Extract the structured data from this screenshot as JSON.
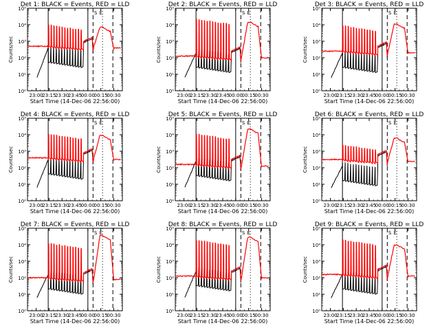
{
  "figure": {
    "colors": {
      "events": "#000000",
      "lld": "#ff0000",
      "background": "#ffffff"
    }
  },
  "chart_data": [
    {
      "type": "line",
      "title": "Det 1: BLACK = Events, RED = LLD",
      "xlabel": "Start Time (14-Dec-06 22:56:00)",
      "ylabel": "Counts/sec",
      "x_ticks": [
        "23:00",
        "23:15",
        "23:30",
        "23:45",
        "00:00",
        "00:15",
        "00:30"
      ],
      "y_ticks": [
        "10^0",
        "10^1",
        "10^2",
        "10^3",
        "10^4",
        "10^5"
      ],
      "xlim": [
        -10,
        100
      ],
      "ylim": [
        0,
        5
      ],
      "log_y": true,
      "markers": [
        "S",
        "E"
      ],
      "series": [
        {
          "name": "BLACK = Events"
        },
        {
          "name": "RED = LLD"
        }
      ]
    },
    {
      "type": "line",
      "title": "Det 2: BLACK = Events, RED = LLD",
      "xlabel": "Start Time (14-Dec-06 22:56:00)",
      "ylabel": "Counts/sec",
      "x_ticks": [
        "23:00",
        "23:15",
        "23:30",
        "23:45",
        "00:00",
        "00:15",
        "00:30"
      ],
      "y_ticks": [
        "10^0",
        "10^1",
        "10^2",
        "10^3",
        "10^4",
        "10^5"
      ],
      "xlim": [
        -10,
        100
      ],
      "ylim": [
        0,
        5
      ],
      "log_y": true,
      "markers": [
        "S",
        "E"
      ],
      "series": [
        {
          "name": "BLACK = Events"
        },
        {
          "name": "RED = LLD"
        }
      ]
    },
    {
      "type": "line",
      "title": "Det 3: BLACK = Events, RED = LLD",
      "xlabel": "Start Time (14-Dec-06 22:56:00)",
      "ylabel": "Counts/sec",
      "x_ticks": [
        "23:00",
        "23:15",
        "23:30",
        "23:45",
        "00:00",
        "00:15",
        "00:30"
      ],
      "y_ticks": [
        "10^0",
        "10^1",
        "10^2",
        "10^3",
        "10^4",
        "10^5"
      ],
      "xlim": [
        -10,
        100
      ],
      "ylim": [
        0,
        5
      ],
      "log_y": true,
      "markers": [
        "S",
        "E"
      ],
      "series": [
        {
          "name": "BLACK = Events"
        },
        {
          "name": "RED = LLD"
        }
      ]
    },
    {
      "type": "line",
      "title": "Det 4: BLACK = Events, RED = LLD",
      "xlabel": "Start Time (14-Dec-06 22:56:00)",
      "ylabel": "Counts/sec",
      "x_ticks": [
        "23:00",
        "23:15",
        "23:30",
        "23:45",
        "00:00",
        "00:15",
        "00:30"
      ],
      "y_ticks": [
        "10^0",
        "10^1",
        "10^2",
        "10^3",
        "10^4",
        "10^5"
      ],
      "xlim": [
        -10,
        100
      ],
      "ylim": [
        0,
        5
      ],
      "log_y": true,
      "markers": [
        "S",
        "E"
      ],
      "series": [
        {
          "name": "BLACK = Events"
        },
        {
          "name": "RED = LLD"
        }
      ]
    },
    {
      "type": "line",
      "title": "Det 5: BLACK = Events, RED = LLD",
      "xlabel": "Start Time (14-Dec-06 22:56:00)",
      "ylabel": "Counts/sec",
      "x_ticks": [
        "23:00",
        "23:15",
        "23:30",
        "23:45",
        "00:00",
        "00:15",
        "00:30"
      ],
      "y_ticks": [
        "10^0",
        "10^1",
        "10^2",
        "10^3",
        "10^4",
        "10^5"
      ],
      "xlim": [
        -10,
        100
      ],
      "ylim": [
        0,
        5
      ],
      "log_y": true,
      "markers": [
        "S",
        "E"
      ],
      "series": [
        {
          "name": "BLACK = Events"
        },
        {
          "name": "RED = LLD"
        }
      ]
    },
    {
      "type": "line",
      "title": "Det 6: BLACK = Events, RED = LLD",
      "xlabel": "Start Time (14-Dec-06 22:56:00)",
      "ylabel": "Counts/sec",
      "x_ticks": [
        "23:00",
        "23:15",
        "23:30",
        "23:45",
        "00:00",
        "00:15",
        "00:30"
      ],
      "y_ticks": [
        "10^0",
        "10^1",
        "10^2",
        "10^3",
        "10^4",
        "10^5"
      ],
      "xlim": [
        -10,
        100
      ],
      "ylim": [
        0,
        5
      ],
      "log_y": true,
      "markers": [
        "S",
        "E"
      ],
      "series": [
        {
          "name": "BLACK = Events"
        },
        {
          "name": "RED = LLD"
        }
      ]
    },
    {
      "type": "line",
      "title": "Det 7: BLACK = Events, RED = LLD",
      "xlabel": "Start Time (14-Dec-06 22:56:00)",
      "ylabel": "Counts/sec",
      "x_ticks": [
        "23:00",
        "23:15",
        "23:30",
        "23:45",
        "00:00",
        "00:15",
        "00:30"
      ],
      "y_ticks": [
        "10^0",
        "10^1",
        "10^2",
        "10^3",
        "10^4",
        "10^5"
      ],
      "xlim": [
        -10,
        100
      ],
      "ylim": [
        0,
        5
      ],
      "log_y": true,
      "markers": [
        "S",
        "E"
      ],
      "series": [
        {
          "name": "BLACK = Events"
        },
        {
          "name": "RED = LLD"
        }
      ]
    },
    {
      "type": "line",
      "title": "Det 8: BLACK = Events, RED = LLD",
      "xlabel": "Start Time (14-Dec-06 22:56:00)",
      "ylabel": "Counts/sec",
      "x_ticks": [
        "23:00",
        "23:15",
        "23:30",
        "23:45",
        "00:00",
        "00:15",
        "00:30"
      ],
      "y_ticks": [
        "10^0",
        "10^1",
        "10^2",
        "10^3",
        "10^4",
        "10^5"
      ],
      "xlim": [
        -10,
        100
      ],
      "ylim": [
        0,
        5
      ],
      "log_y": true,
      "markers": [
        "S",
        "E"
      ],
      "series": [
        {
          "name": "BLACK = Events"
        },
        {
          "name": "RED = LLD"
        }
      ]
    },
    {
      "type": "line",
      "title": "Det 9: BLACK = Events, RED = LLD",
      "xlabel": "Start Time (14-Dec-06 22:56:00)",
      "ylabel": "Counts/sec",
      "x_ticks": [
        "23:00",
        "23:15",
        "23:30",
        "23:45",
        "00:00",
        "00:15",
        "00:30"
      ],
      "y_ticks": [
        "10^0",
        "10^1",
        "10^2",
        "10^3",
        "10^4",
        "10^5"
      ],
      "xlim": [
        -10,
        100
      ],
      "ylim": [
        0,
        5
      ],
      "log_y": true,
      "markers": [
        "S",
        "E"
      ],
      "series": [
        {
          "name": "BLACK = Events"
        },
        {
          "name": "RED = LLD"
        }
      ]
    }
  ]
}
